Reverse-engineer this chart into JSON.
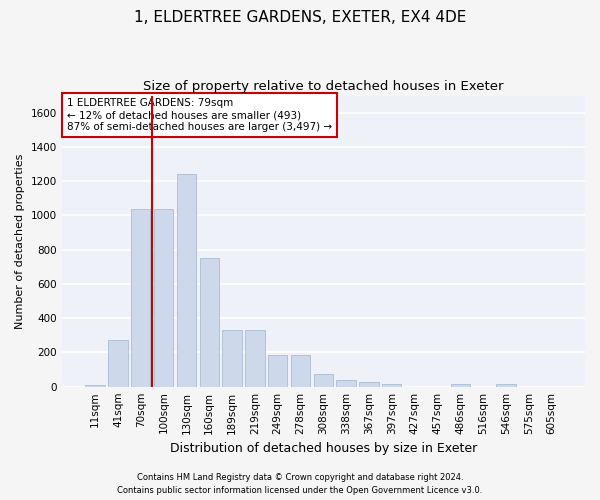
{
  "title": "1, ELDERTREE GARDENS, EXETER, EX4 4DE",
  "subtitle": "Size of property relative to detached houses in Exeter",
  "xlabel": "Distribution of detached houses by size in Exeter",
  "ylabel": "Number of detached properties",
  "categories": [
    "11sqm",
    "41sqm",
    "70sqm",
    "100sqm",
    "130sqm",
    "160sqm",
    "189sqm",
    "219sqm",
    "249sqm",
    "278sqm",
    "308sqm",
    "338sqm",
    "367sqm",
    "397sqm",
    "427sqm",
    "457sqm",
    "486sqm",
    "516sqm",
    "546sqm",
    "575sqm",
    "605sqm"
  ],
  "values": [
    10,
    275,
    1040,
    1040,
    1240,
    750,
    330,
    330,
    185,
    185,
    75,
    40,
    30,
    18,
    0,
    0,
    15,
    0,
    15,
    0,
    0
  ],
  "bar_color": "#cdd8ea",
  "bar_edgecolor": "#aabdd4",
  "vline_color": "#cc0000",
  "vline_pos": 2.0,
  "annotation_lines": [
    "1 ELDERTREE GARDENS: 79sqm",
    "← 12% of detached houses are smaller (493)",
    "87% of semi-detached houses are larger (3,497) →"
  ],
  "annotation_box_edgecolor": "#cc0000",
  "ylim": [
    0,
    1700
  ],
  "yticks": [
    0,
    200,
    400,
    600,
    800,
    1000,
    1200,
    1400,
    1600
  ],
  "footnote1": "Contains HM Land Registry data © Crown copyright and database right 2024.",
  "footnote2": "Contains public sector information licensed under the Open Government Licence v3.0.",
  "bg_color": "#eef2f8",
  "grid_color": "#ffffff",
  "fig_bg_color": "#f5f5f5",
  "title_fontsize": 11,
  "subtitle_fontsize": 9.5,
  "xlabel_fontsize": 9,
  "ylabel_fontsize": 8,
  "tick_fontsize": 7.5,
  "annotation_fontsize": 7.5,
  "footnote_fontsize": 6
}
